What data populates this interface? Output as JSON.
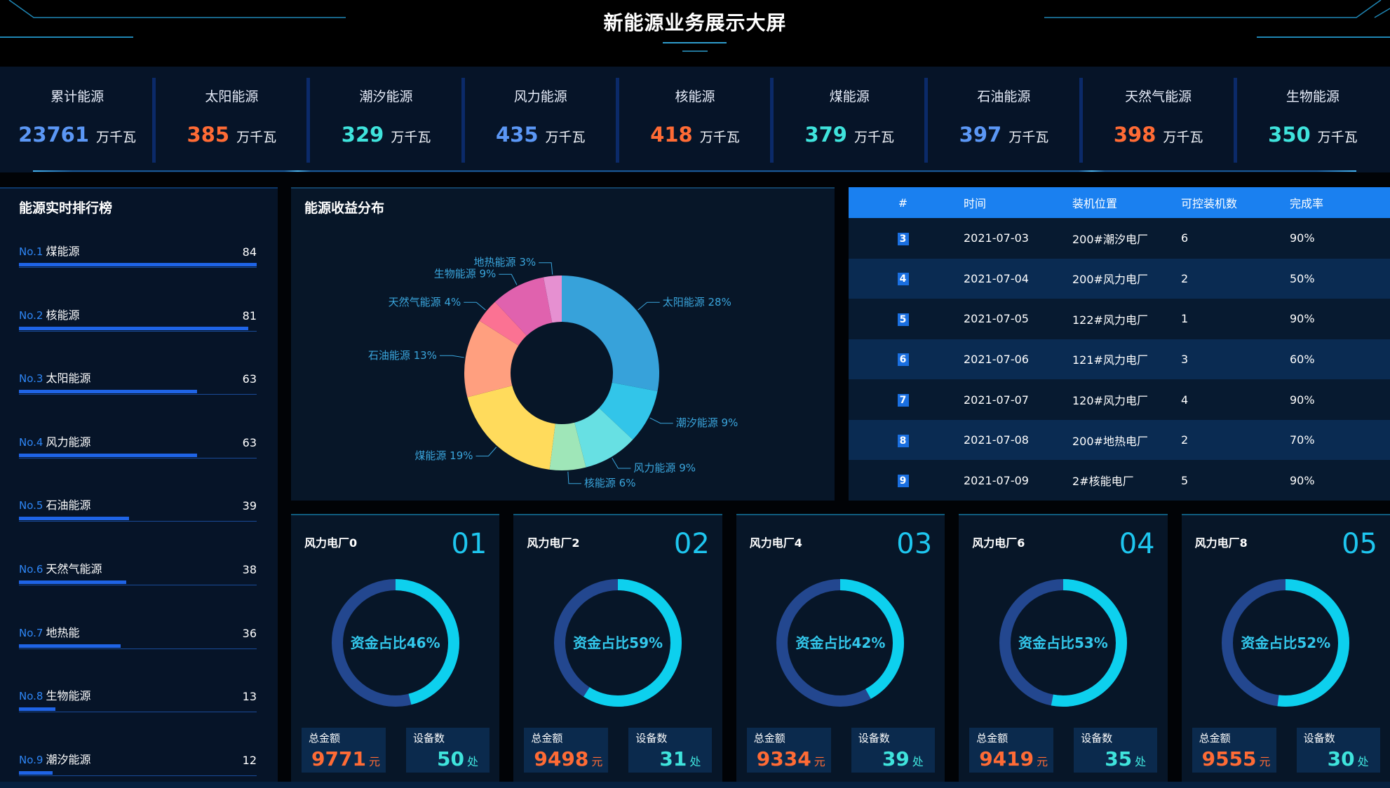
{
  "header": {
    "title": "新能源业务展示大屏"
  },
  "stats": {
    "unit": "万千瓦",
    "items": [
      {
        "label": "累计能源",
        "value": "23761",
        "color": "#5b97f5"
      },
      {
        "label": "太阳能源",
        "value": "385",
        "color": "#ff6b35"
      },
      {
        "label": "潮汐能源",
        "value": "329",
        "color": "#3fe3dc"
      },
      {
        "label": "风力能源",
        "value": "435",
        "color": "#5b97f5"
      },
      {
        "label": "核能源",
        "value": "418",
        "color": "#ff6b35"
      },
      {
        "label": "煤能源",
        "value": "379",
        "color": "#3fe3dc"
      },
      {
        "label": "石油能源",
        "value": "397",
        "color": "#5b97f5"
      },
      {
        "label": "天然气能源",
        "value": "398",
        "color": "#ff6b35"
      },
      {
        "label": "生物能源",
        "value": "350",
        "color": "#3fe3dc"
      }
    ]
  },
  "ranking": {
    "title": "能源实时排行榜",
    "items": [
      {
        "rank": "No.1",
        "name": "煤能源",
        "value": 84
      },
      {
        "rank": "No.2",
        "name": "核能源",
        "value": 81
      },
      {
        "rank": "No.3",
        "name": "太阳能源",
        "value": 63
      },
      {
        "rank": "No.4",
        "name": "风力能源",
        "value": 63
      },
      {
        "rank": "No.5",
        "name": "石油能源",
        "value": 39
      },
      {
        "rank": "No.6",
        "name": "天然气能源",
        "value": 38
      },
      {
        "rank": "No.7",
        "name": "地热能",
        "value": 36
      },
      {
        "rank": "No.8",
        "name": "生物能源",
        "value": 13
      },
      {
        "rank": "No.9",
        "name": "潮汐能源",
        "value": 12
      }
    ]
  },
  "chart_data": {
    "type": "pie",
    "title": "能源收益分布",
    "categories": [
      "太阳能源",
      "潮汐能源",
      "风力能源",
      "核能源",
      "煤能源",
      "石油能源",
      "天然气能源",
      "生物能源",
      "地热能源"
    ],
    "values": [
      28,
      9,
      9,
      6,
      19,
      13,
      4,
      9,
      3
    ],
    "unit": "%",
    "colors": [
      "#37a2da",
      "#32c5e9",
      "#67e0e3",
      "#9fe6b8",
      "#ffdb5c",
      "#ff9f7f",
      "#fb7293",
      "#e062ae",
      "#e690d1"
    ],
    "label_color": "#3aa5dc"
  },
  "table": {
    "headers": [
      "#",
      "时间",
      "装机位置",
      "可控装机数",
      "完成率"
    ],
    "rows": [
      [
        "3",
        "2021-07-03",
        "200#潮汐电厂",
        "6",
        "90%"
      ],
      [
        "4",
        "2021-07-04",
        "200#风力电厂",
        "2",
        "50%"
      ],
      [
        "5",
        "2021-07-05",
        "122#风力电厂",
        "1",
        "90%"
      ],
      [
        "6",
        "2021-07-06",
        "121#风力电厂",
        "3",
        "60%"
      ],
      [
        "7",
        "2021-07-07",
        "120#风力电厂",
        "4",
        "90%"
      ],
      [
        "8",
        "2021-07-08",
        "200#地热电厂",
        "2",
        "70%"
      ],
      [
        "9",
        "2021-07-09",
        "2#核能电厂",
        "5",
        "90%"
      ]
    ]
  },
  "plant_labels": {
    "amount": "总金额",
    "amount_unit": "元",
    "devices": "设备数",
    "devices_unit": "处"
  },
  "plants": [
    {
      "name": "风力电厂0",
      "index": "01",
      "ratio_text": "资金占比46%",
      "ratio": 46,
      "amount": "9771",
      "devices": "50"
    },
    {
      "name": "风力电厂2",
      "index": "02",
      "ratio_text": "资金占比59%",
      "ratio": 59,
      "amount": "9498",
      "devices": "31"
    },
    {
      "name": "风力电厂4",
      "index": "03",
      "ratio_text": "资金占比42%",
      "ratio": 42,
      "amount": "9334",
      "devices": "39"
    },
    {
      "name": "风力电厂6",
      "index": "04",
      "ratio_text": "资金占比53%",
      "ratio": 53,
      "amount": "9419",
      "devices": "35"
    },
    {
      "name": "风力电厂8",
      "index": "05",
      "ratio_text": "资金占比52%",
      "ratio": 52,
      "amount": "9555",
      "devices": "30"
    }
  ],
  "colors": {
    "ring_progress": "#0dd0ee",
    "ring_track": "#23478f",
    "amount": "#ff6b35",
    "devices": "#3fe3dc",
    "table_header": "#1a80f0",
    "header_line": "#1f86b4"
  }
}
